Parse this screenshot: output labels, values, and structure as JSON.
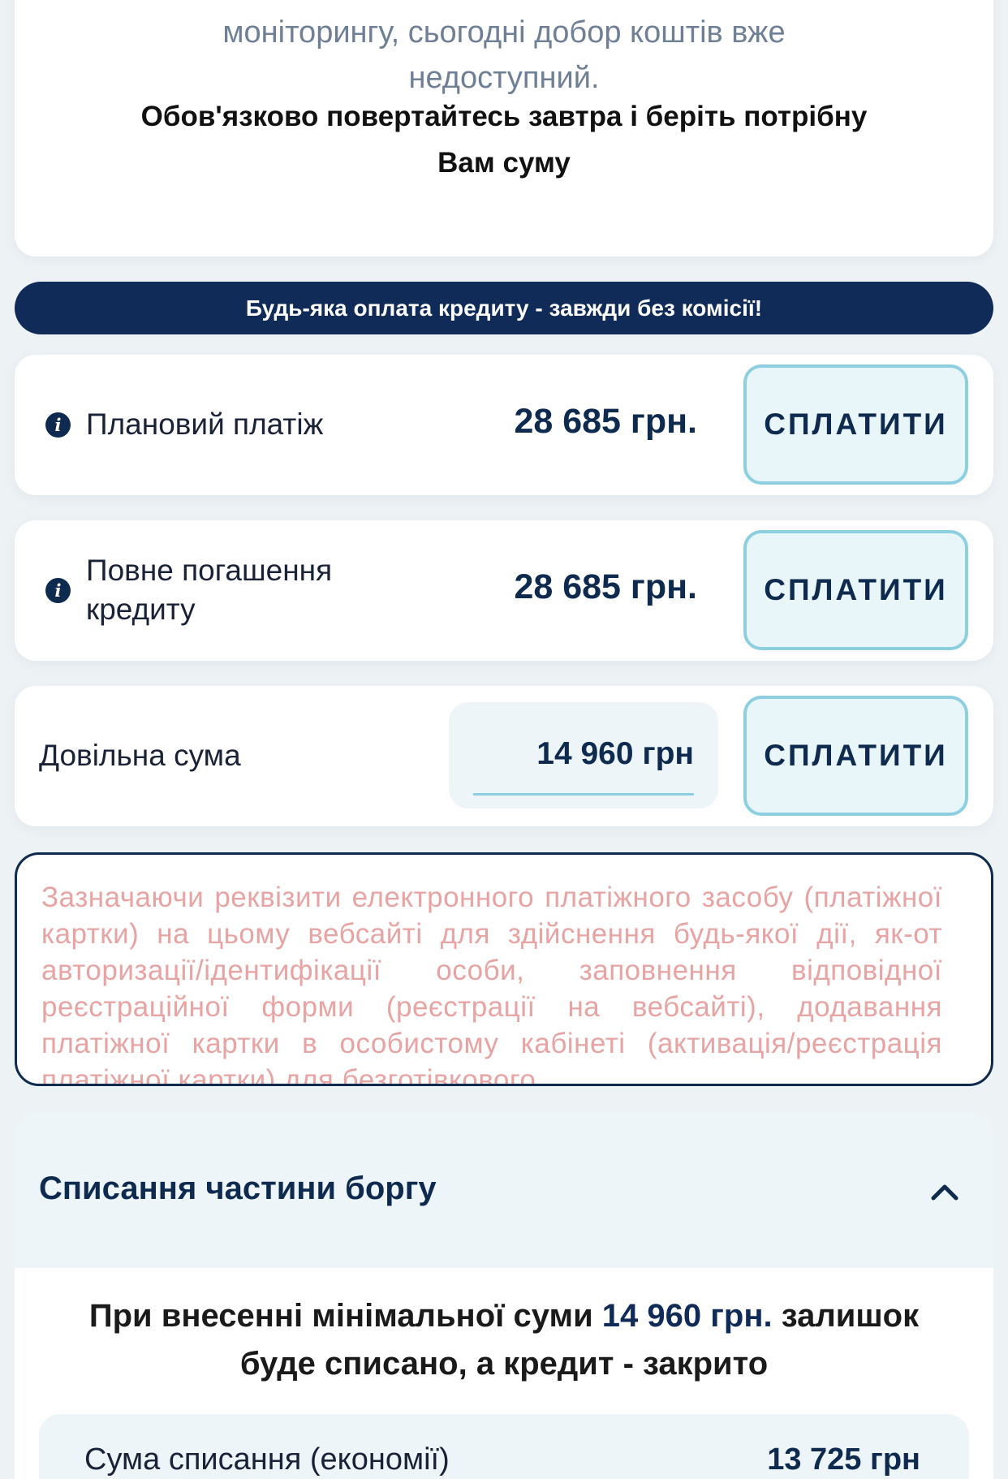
{
  "notice_card": {
    "grey_text": "моніторингу, сьогодні добор коштів вже недоступний.",
    "bold_text": "Обов'язково повертайтесь завтра і беріть потрібну Вам суму"
  },
  "banner": "Будь-яка оплата кредиту - завжди без комісії!",
  "payments": [
    {
      "label": "Плановий платіж",
      "amount": "28 685 грн.",
      "button": "СПЛАТИТИ",
      "icon": "info-icon"
    },
    {
      "label": "Повне погашення кредиту",
      "amount": "28 685 грн.",
      "button": "СПЛАТИТИ",
      "icon": "info-icon"
    },
    {
      "label": "Довільна сума",
      "input_value": "14 960 грн",
      "button": "СПЛАТИТИ"
    }
  ],
  "disclaimer": "Зазначаючи реквізити електронного платіжного засобу (платіжної картки) на цьому вебсайті для здійснення будь-якої дії, як-от авторизації/ідентифікації особи, заповнення відповідної реєстраційної форми (реєстрації на вебсайті), додавання платіжної картки в особистому кабінеті (активація/реєстрація платіжної картки) для безготівкового",
  "writeoff": {
    "title": "Списання частини боргу",
    "msg_before": "При внесенні мінімальної суми ",
    "msg_amount": "14 960 грн.",
    "msg_after": " залишок буде списано, а кредит - закрито",
    "savings_label": "Сума списання (економії)",
    "savings_value": "13 725 грн"
  },
  "colors": {
    "navy": "#102b57",
    "accent_border": "#8ccfe0",
    "disclaimer": "#e8a3a3"
  }
}
